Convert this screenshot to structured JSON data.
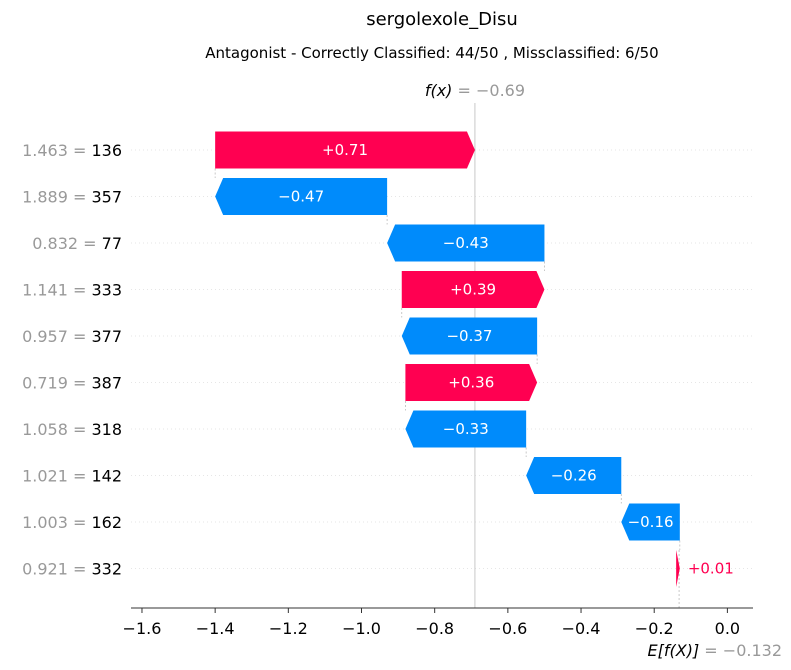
{
  "title": "sergolexole_Disu",
  "subtitle": "Antagonist - Correctly Classified: 44/50 , Missclassified: 6/50",
  "chart_data": {
    "type": "waterfall",
    "base_value": -0.132,
    "output_value": -0.69,
    "fx_label_prefix": "f(x)",
    "fx_label_value": " = −0.69",
    "efx_label_prefix": "E[f(X)]",
    "efx_label_value": " = −0.132",
    "xlim": [
      -1.63,
      0.07
    ],
    "x_ticks": [
      -1.6,
      -1.4,
      -1.2,
      -1.0,
      -0.8,
      -0.6,
      -0.4,
      -0.2,
      0.0
    ],
    "x_tick_labels": [
      "−1.6",
      "−1.4",
      "−1.2",
      "−1.0",
      "−0.8",
      "−0.6",
      "−0.4",
      "−0.2",
      "0.0"
    ],
    "features": [
      {
        "value": "1.463",
        "name": "136",
        "contribution": 0.71,
        "label": "+0.71"
      },
      {
        "value": "1.889",
        "name": "357",
        "contribution": -0.47,
        "label": "−0.47"
      },
      {
        "value": "0.832",
        "name": "77",
        "contribution": -0.43,
        "label": "−0.43"
      },
      {
        "value": "1.141",
        "name": "333",
        "contribution": 0.39,
        "label": "+0.39"
      },
      {
        "value": "0.957",
        "name": "377",
        "contribution": -0.37,
        "label": "−0.37"
      },
      {
        "value": "0.719",
        "name": "387",
        "contribution": 0.36,
        "label": "+0.36"
      },
      {
        "value": "1.058",
        "name": "318",
        "contribution": -0.33,
        "label": "−0.33"
      },
      {
        "value": "1.021",
        "name": "142",
        "contribution": -0.26,
        "label": "−0.26"
      },
      {
        "value": "1.003",
        "name": "162",
        "contribution": -0.16,
        "label": "−0.16"
      },
      {
        "value": "0.921",
        "name": "332",
        "contribution": 0.01,
        "label": "+0.01"
      }
    ],
    "colors": {
      "positive": "#ff0051",
      "negative": "#008bfb",
      "muted": "#999999"
    }
  }
}
